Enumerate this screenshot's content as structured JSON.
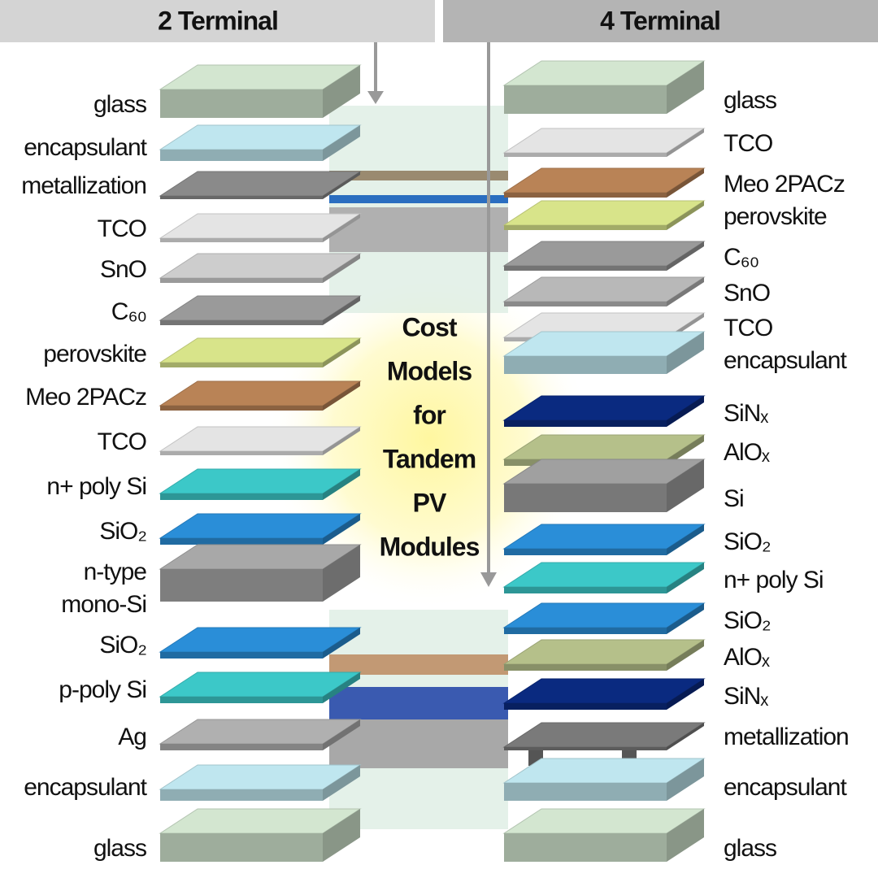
{
  "header": {
    "left": "2 Terminal",
    "right": "4 Terminal"
  },
  "center": {
    "title_lines": [
      "Cost",
      "Models",
      "for",
      "Tandem",
      "PV",
      "Modules"
    ]
  },
  "left_stack": {
    "layers": [
      {
        "lines": [
          "glass"
        ],
        "color": "#d3e6d0"
      },
      {
        "lines": [
          "encapsulant"
        ],
        "color": "#bfe6ef"
      },
      {
        "lines": [
          "metallization"
        ],
        "color": "#8a8a8a"
      },
      {
        "lines": [
          "TCO"
        ],
        "color": "#e4e4e4"
      },
      {
        "lines": [
          "SnO"
        ],
        "color": "#cdcdcd"
      },
      {
        "lines": [
          "C₆₀"
        ],
        "color": "#9a9a9a"
      },
      {
        "lines": [
          "perovskite"
        ],
        "color": "#d8e48a"
      },
      {
        "lines": [
          "Meo 2PACz"
        ],
        "color": "#b98356"
      },
      {
        "lines": [
          "TCO"
        ],
        "color": "#e4e4e4"
      },
      {
        "lines": [
          "n+ poly Si"
        ],
        "color": "#3cc8c8"
      },
      {
        "lines": [
          "SiO₂"
        ],
        "color": "#2a8ed8"
      },
      {
        "lines": [
          "n-type",
          "mono-Si"
        ],
        "color": "#a8a8a8"
      },
      {
        "lines": [
          "SiO₂"
        ],
        "color": "#2a8ed8"
      },
      {
        "lines": [
          "p-poly Si"
        ],
        "color": "#3cc8c8"
      },
      {
        "lines": [
          "Ag"
        ],
        "color": "#b0b0b0"
      },
      {
        "lines": [
          "encapsulant"
        ],
        "color": "#bfe6ef"
      },
      {
        "lines": [
          "glass"
        ],
        "color": "#d3e6d0"
      }
    ]
  },
  "right_stack": {
    "layers": [
      {
        "lines": [
          "glass"
        ],
        "color": "#d3e6d0"
      },
      {
        "lines": [
          "TCO"
        ],
        "color": "#e4e4e4"
      },
      {
        "lines": [
          "Meo 2PACz"
        ],
        "color": "#b98356"
      },
      {
        "lines": [
          "perovskite"
        ],
        "color": "#d8e48a"
      },
      {
        "lines": [
          "C₆₀"
        ],
        "color": "#9a9a9a"
      },
      {
        "lines": [
          "SnO"
        ],
        "color": "#b8b8b8"
      },
      {
        "lines": [
          "TCO"
        ],
        "color": "#e4e4e4"
      },
      {
        "lines": [
          "encapsulant"
        ],
        "color": "#bfe6ef"
      },
      {
        "lines": [
          "SiNₓ"
        ],
        "color": "#0a2a80"
      },
      {
        "lines": [
          "AlOₓ"
        ],
        "color": "#b5c08a"
      },
      {
        "lines": [
          "Si"
        ],
        "color": "#a0a0a0"
      },
      {
        "lines": [
          "SiO₂"
        ],
        "color": "#2a8ed8"
      },
      {
        "lines": [
          "n+ poly Si"
        ],
        "color": "#3cc8c8"
      },
      {
        "lines": [
          "SiO₂"
        ],
        "color": "#2a8ed8"
      },
      {
        "lines": [
          "AlOₓ"
        ],
        "color": "#b5c08a"
      },
      {
        "lines": [
          "SiNₓ"
        ],
        "color": "#0a2a80"
      },
      {
        "lines": [
          "metallization"
        ],
        "color": "#7a7a7a"
      },
      {
        "lines": [
          "encapsulant"
        ],
        "color": "#bfe6ef"
      },
      {
        "lines": [
          "glass"
        ],
        "color": "#d3e6d0"
      }
    ]
  }
}
